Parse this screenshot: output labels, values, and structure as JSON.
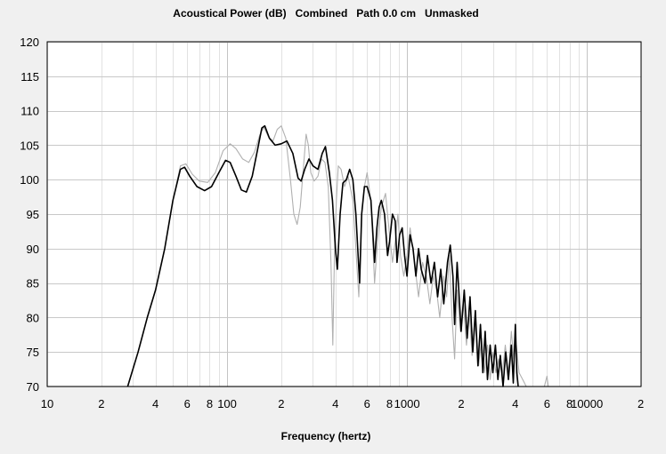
{
  "chart_data": {
    "type": "line",
    "title": "Acoustical Power (dB)   Combined   Path 0.0 cm   Unmasked",
    "xlabel": "Frequency (hertz)",
    "ylabel": "",
    "xscale": "log",
    "xlim": [
      10,
      20000
    ],
    "ylim": [
      70,
      120
    ],
    "yticks": [
      70,
      75,
      80,
      85,
      90,
      95,
      100,
      105,
      110,
      115,
      120
    ],
    "xticks": [
      {
        "value": 10,
        "label": "10"
      },
      {
        "value": 20,
        "label": "2"
      },
      {
        "value": 40,
        "label": "4"
      },
      {
        "value": 60,
        "label": "6"
      },
      {
        "value": 80,
        "label": "8"
      },
      {
        "value": 100,
        "label": "100"
      },
      {
        "value": 200,
        "label": "2"
      },
      {
        "value": 400,
        "label": "4"
      },
      {
        "value": 600,
        "label": "6"
      },
      {
        "value": 800,
        "label": "8"
      },
      {
        "value": 1000,
        "label": "1000"
      },
      {
        "value": 2000,
        "label": "2"
      },
      {
        "value": 4000,
        "label": "4"
      },
      {
        "value": 6000,
        "label": "6"
      },
      {
        "value": 8000,
        "label": "8"
      },
      {
        "value": 10000,
        "label": "10000"
      },
      {
        "value": 20000,
        "label": "2"
      }
    ],
    "grid": true,
    "series": [
      {
        "color": "#000000",
        "points": [
          [
            28,
            70
          ],
          [
            32,
            75
          ],
          [
            36,
            80
          ],
          [
            40,
            84
          ],
          [
            45,
            90
          ],
          [
            50,
            97
          ],
          [
            55,
            101.5
          ],
          [
            58,
            101.8
          ],
          [
            62,
            100.5
          ],
          [
            68,
            99
          ],
          [
            75,
            98.4
          ],
          [
            82,
            99
          ],
          [
            90,
            101
          ],
          [
            98,
            102.8
          ],
          [
            104,
            102.5
          ],
          [
            112,
            100.5
          ],
          [
            120,
            98.5
          ],
          [
            128,
            98.2
          ],
          [
            138,
            100.5
          ],
          [
            148,
            104.5
          ],
          [
            156,
            107.5
          ],
          [
            162,
            107.8
          ],
          [
            172,
            106
          ],
          [
            185,
            105
          ],
          [
            200,
            105.2
          ],
          [
            215,
            105.6
          ],
          [
            232,
            103.8
          ],
          [
            248,
            100.2
          ],
          [
            258,
            99.8
          ],
          [
            270,
            101.5
          ],
          [
            285,
            103
          ],
          [
            300,
            102
          ],
          [
            320,
            101.5
          ],
          [
            338,
            103.8
          ],
          [
            352,
            104.8
          ],
          [
            370,
            101
          ],
          [
            385,
            97
          ],
          [
            400,
            90
          ],
          [
            410,
            87
          ],
          [
            425,
            95
          ],
          [
            440,
            99.5
          ],
          [
            460,
            100
          ],
          [
            480,
            101.5
          ],
          [
            500,
            100
          ],
          [
            520,
            95
          ],
          [
            545,
            85
          ],
          [
            560,
            95
          ],
          [
            580,
            99
          ],
          [
            600,
            99
          ],
          [
            630,
            97
          ],
          [
            660,
            88
          ],
          [
            680,
            93
          ],
          [
            700,
            96
          ],
          [
            720,
            97
          ],
          [
            750,
            95
          ],
          [
            780,
            89
          ],
          [
            800,
            91
          ],
          [
            830,
            95
          ],
          [
            860,
            94
          ],
          [
            880,
            88
          ],
          [
            910,
            92
          ],
          [
            940,
            93
          ],
          [
            970,
            89
          ],
          [
            1000,
            86
          ],
          [
            1040,
            92
          ],
          [
            1080,
            90
          ],
          [
            1120,
            86
          ],
          [
            1160,
            90
          ],
          [
            1200,
            87
          ],
          [
            1260,
            85
          ],
          [
            1300,
            89
          ],
          [
            1360,
            85
          ],
          [
            1420,
            88
          ],
          [
            1480,
            83
          ],
          [
            1540,
            87
          ],
          [
            1600,
            82
          ],
          [
            1680,
            88
          ],
          [
            1740,
            90.5
          ],
          [
            1800,
            86
          ],
          [
            1840,
            79
          ],
          [
            1900,
            88
          ],
          [
            1960,
            82
          ],
          [
            2000,
            78
          ],
          [
            2080,
            84
          ],
          [
            2160,
            77
          ],
          [
            2240,
            83
          ],
          [
            2320,
            75
          ],
          [
            2400,
            81
          ],
          [
            2480,
            73
          ],
          [
            2560,
            79
          ],
          [
            2640,
            72
          ],
          [
            2720,
            78
          ],
          [
            2800,
            71
          ],
          [
            2900,
            76
          ],
          [
            3000,
            72
          ],
          [
            3100,
            76
          ],
          [
            3200,
            71
          ],
          [
            3300,
            74.5
          ],
          [
            3420,
            70
          ],
          [
            3540,
            75
          ],
          [
            3660,
            71
          ],
          [
            3800,
            76
          ],
          [
            3900,
            70.5
          ],
          [
            4000,
            79
          ],
          [
            4080,
            72
          ],
          [
            4150,
            70
          ]
        ]
      },
      {
        "color": "#b0b0b0",
        "points": [
          [
            28,
            70
          ],
          [
            32,
            75
          ],
          [
            36,
            80
          ],
          [
            40,
            84
          ],
          [
            45,
            90
          ],
          [
            50,
            97
          ],
          [
            55,
            102
          ],
          [
            59,
            102.3
          ],
          [
            64,
            100.8
          ],
          [
            70,
            99.8
          ],
          [
            78,
            99.6
          ],
          [
            86,
            101
          ],
          [
            95,
            104.2
          ],
          [
            104,
            105.2
          ],
          [
            112,
            104.5
          ],
          [
            122,
            103
          ],
          [
            132,
            102.5
          ],
          [
            142,
            104
          ],
          [
            152,
            106.5
          ],
          [
            160,
            107.6
          ],
          [
            170,
            106.2
          ],
          [
            180,
            105.6
          ],
          [
            190,
            107.3
          ],
          [
            200,
            107.8
          ],
          [
            212,
            106
          ],
          [
            225,
            100
          ],
          [
            235,
            95
          ],
          [
            245,
            93.5
          ],
          [
            255,
            96
          ],
          [
            265,
            101.5
          ],
          [
            275,
            106.6
          ],
          [
            283,
            105
          ],
          [
            292,
            101
          ],
          [
            305,
            99.8
          ],
          [
            320,
            100.5
          ],
          [
            335,
            103
          ],
          [
            350,
            102.5
          ],
          [
            365,
            99
          ],
          [
            378,
            88
          ],
          [
            387,
            76
          ],
          [
            395,
            89
          ],
          [
            405,
            97
          ],
          [
            415,
            102
          ],
          [
            430,
            101.5
          ],
          [
            450,
            99
          ],
          [
            470,
            100.5
          ],
          [
            500,
            97
          ],
          [
            520,
            90
          ],
          [
            540,
            83
          ],
          [
            560,
            95
          ],
          [
            580,
            99
          ],
          [
            600,
            101
          ],
          [
            630,
            97
          ],
          [
            660,
            85
          ],
          [
            690,
            92
          ],
          [
            720,
            96
          ],
          [
            760,
            98
          ],
          [
            800,
            92
          ],
          [
            830,
            88
          ],
          [
            860,
            91
          ],
          [
            890,
            95
          ],
          [
            920,
            89
          ],
          [
            960,
            86
          ],
          [
            1000,
            89
          ],
          [
            1040,
            93
          ],
          [
            1100,
            88
          ],
          [
            1160,
            83
          ],
          [
            1220,
            88
          ],
          [
            1280,
            86
          ],
          [
            1340,
            82
          ],
          [
            1400,
            86
          ],
          [
            1460,
            84
          ],
          [
            1520,
            80
          ],
          [
            1600,
            86
          ],
          [
            1660,
            83
          ],
          [
            1720,
            89
          ],
          [
            1780,
            80
          ],
          [
            1840,
            74
          ],
          [
            1900,
            84
          ],
          [
            1980,
            78
          ],
          [
            2060,
            82
          ],
          [
            2140,
            76
          ],
          [
            2220,
            81
          ],
          [
            2300,
            74.5
          ],
          [
            2400,
            79
          ],
          [
            2500,
            73
          ],
          [
            2600,
            77
          ],
          [
            2700,
            72
          ],
          [
            2800,
            76
          ],
          [
            2900,
            71
          ],
          [
            3000,
            75
          ],
          [
            3120,
            72
          ],
          [
            3240,
            74
          ],
          [
            3380,
            71.5
          ],
          [
            3520,
            76
          ],
          [
            3660,
            72
          ],
          [
            3800,
            78
          ],
          [
            3920,
            74
          ],
          [
            4050,
            76
          ],
          [
            4200,
            72
          ],
          [
            4400,
            71
          ],
          [
            4600,
            70
          ],
          [
            5800,
            70
          ],
          [
            6000,
            71.5
          ],
          [
            6100,
            70
          ]
        ]
      }
    ]
  }
}
